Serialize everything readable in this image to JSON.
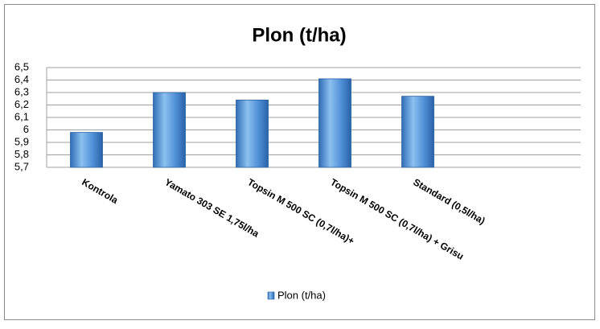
{
  "chart_data": {
    "type": "bar",
    "title": "Plon (t/ha)",
    "categories": [
      "Kontrola",
      "Yamato 303 SE 1,75l/ha",
      "Topsin M 500 SC (0,7l/ha)+",
      "Topsin M 500 SC (0,7l/ha) + Grisu",
      "Standard (0,5l/ha)"
    ],
    "series": [
      {
        "name": "Plon (t/ha)",
        "color": "#4f8fd6",
        "values": [
          5.98,
          6.3,
          6.24,
          6.41,
          6.27
        ]
      }
    ],
    "ylim": [
      5.7,
      6.5
    ],
    "yticks": [
      {
        "value": 5.7,
        "label": "5,7"
      },
      {
        "value": 5.8,
        "label": "5,8"
      },
      {
        "value": 5.9,
        "label": "5,9"
      },
      6,
      {
        "value": 6.1,
        "label": "6,1"
      },
      {
        "value": 6.2,
        "label": "6,2"
      },
      {
        "value": 6.3,
        "label": "6,3"
      },
      {
        "value": 6.4,
        "label": "6,4"
      },
      {
        "value": 6.5,
        "label": "6,5"
      }
    ],
    "grid": true,
    "legend": "bottom"
  }
}
